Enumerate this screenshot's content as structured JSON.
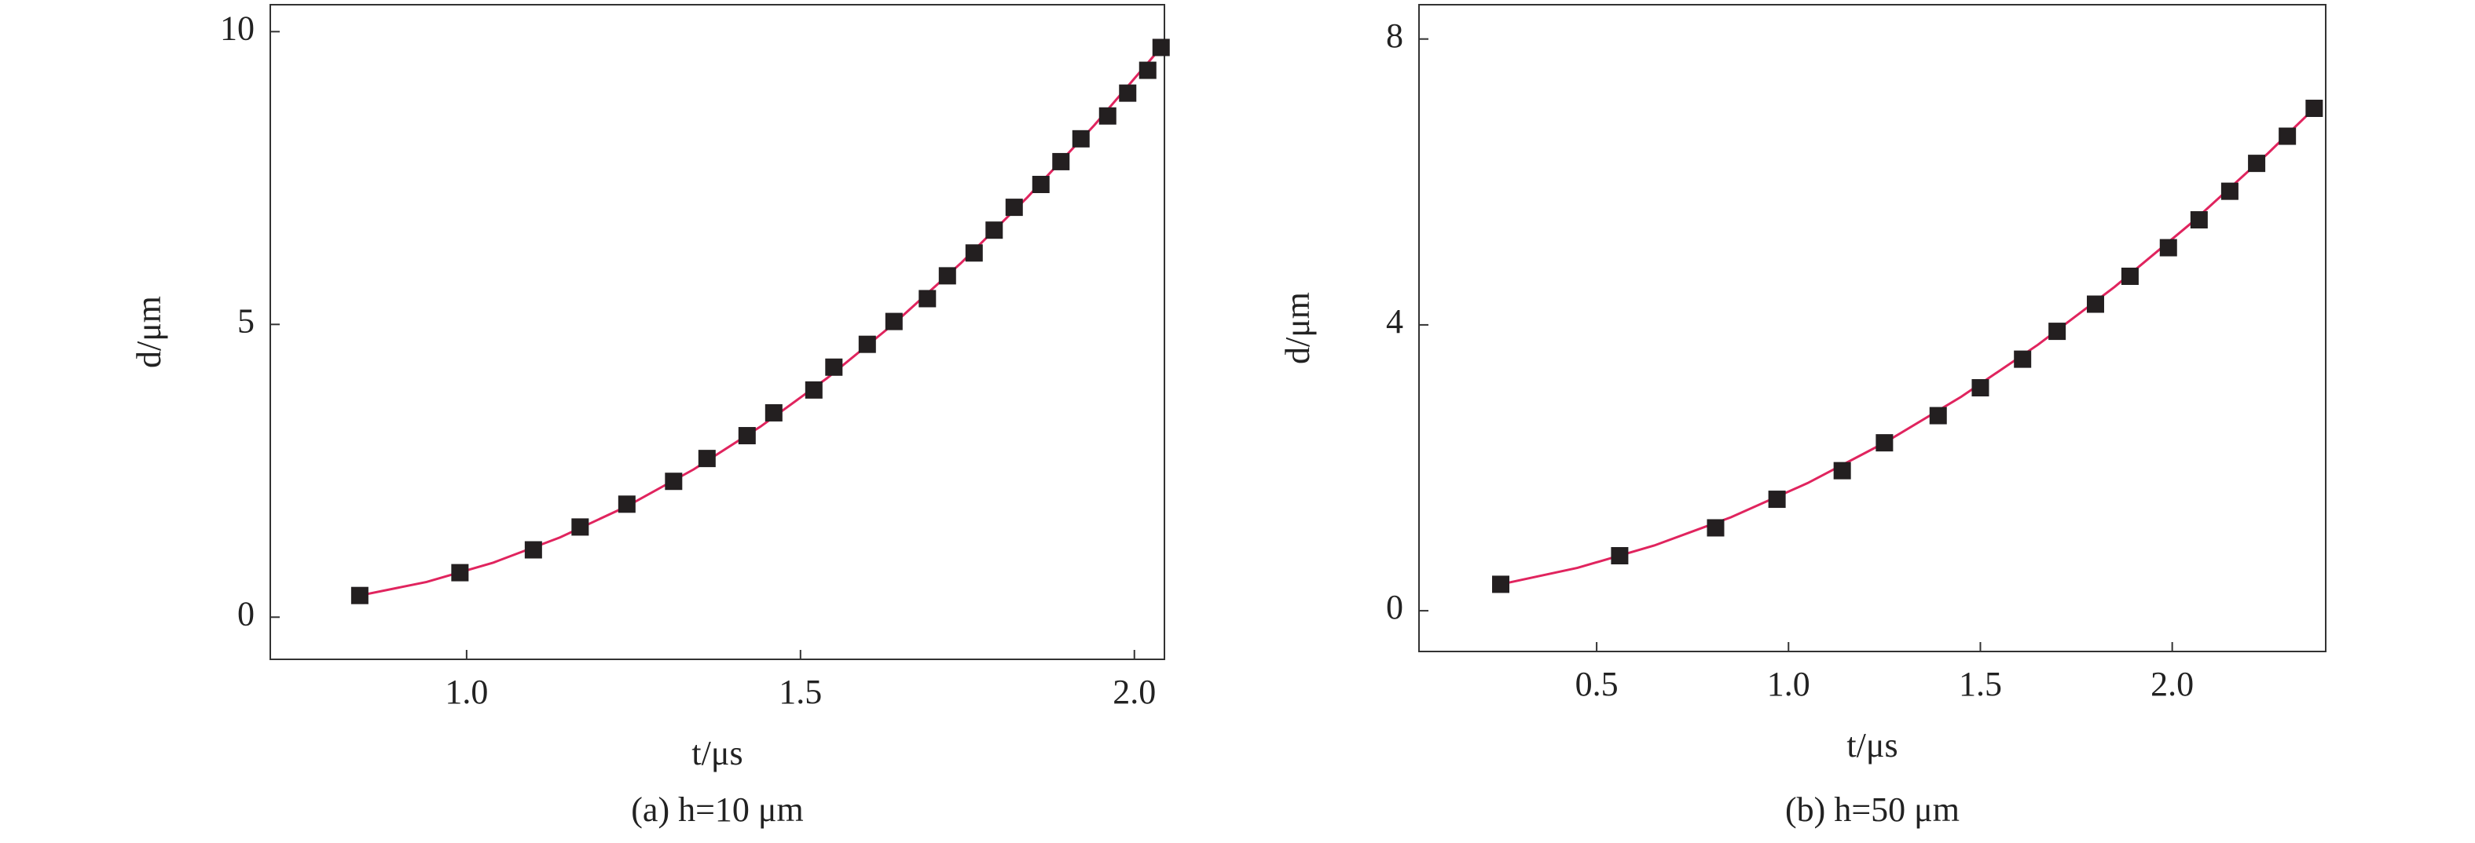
{
  "chart_data": [
    {
      "type": "scatter",
      "caption": "(a) h=10 μm",
      "xlabel": "t/μs",
      "ylabel": "d/μm",
      "xlim": [
        0.706,
        2.045
      ],
      "ylim": [
        -0.72,
        10.46
      ],
      "xticks": [
        {
          "value": 1,
          "label": "1.0"
        },
        1.5,
        {
          "value": 2,
          "label": "2.0"
        }
      ],
      "yticks": [
        0,
        5,
        10
      ],
      "series": [
        {
          "style": "marker",
          "color": "#231f20",
          "x": [
            0.84,
            0.99,
            1.1,
            1.17,
            1.24,
            1.31,
            1.36,
            1.42,
            1.46,
            1.52,
            1.55,
            1.6,
            1.64,
            1.69,
            1.72,
            1.76,
            1.79,
            1.82,
            1.86,
            1.89,
            1.92,
            1.96,
            1.99,
            2.02,
            2.04
          ],
          "values": [
            0.37,
            0.76,
            1.15,
            1.54,
            1.93,
            2.32,
            2.71,
            3.1,
            3.49,
            3.88,
            4.27,
            4.66,
            5.05,
            5.44,
            5.83,
            6.22,
            6.61,
            7.0,
            7.39,
            7.78,
            8.17,
            8.56,
            8.95,
            9.34,
            9.73
          ]
        },
        {
          "style": "line",
          "color": "#e0245e",
          "x": [
            0.84,
            0.94,
            1.04,
            1.14,
            1.24,
            1.34,
            1.44,
            1.54,
            1.64,
            1.74,
            1.84,
            1.94,
            2.04
          ],
          "values": [
            0.37,
            0.601,
            0.932,
            1.363,
            1.894,
            2.524,
            3.254,
            4.084,
            5.014,
            6.044,
            7.173,
            8.402,
            9.731
          ]
        }
      ]
    },
    {
      "type": "scatter",
      "caption": "(b) h=50 μm",
      "xlabel": "t/μs",
      "ylabel": "d/μm",
      "xlim": [
        0.037,
        2.4
      ],
      "ylim": [
        -0.57,
        8.48
      ],
      "xticks": [
        0.5,
        {
          "value": 1,
          "label": "1.0"
        },
        1.5,
        {
          "value": 2,
          "label": "2.0"
        }
      ],
      "yticks": [
        0,
        4,
        8
      ],
      "series": [
        {
          "style": "marker",
          "color": "#231f20",
          "x": [
            0.25,
            0.56,
            0.81,
            0.97,
            1.14,
            1.25,
            1.39,
            1.5,
            1.61,
            1.7,
            1.8,
            1.89,
            1.99,
            2.07,
            2.15,
            2.22,
            2.3,
            2.37
          ],
          "values": [
            0.37,
            0.77,
            1.16,
            1.56,
            1.96,
            2.35,
            2.73,
            3.12,
            3.52,
            3.91,
            4.29,
            4.68,
            5.08,
            5.47,
            5.87,
            6.26,
            6.64,
            7.03
          ]
        },
        {
          "style": "line",
          "color": "#e0245e",
          "x": [
            0.25,
            0.45,
            0.65,
            0.85,
            1.05,
            1.25,
            1.45,
            1.65,
            1.85,
            2.05,
            2.25,
            2.37
          ],
          "values": [
            0.37,
            0.6,
            0.913,
            1.308,
            1.787,
            2.35,
            2.994,
            3.722,
            4.532,
            5.426,
            6.403,
            7.03
          ]
        }
      ]
    }
  ]
}
